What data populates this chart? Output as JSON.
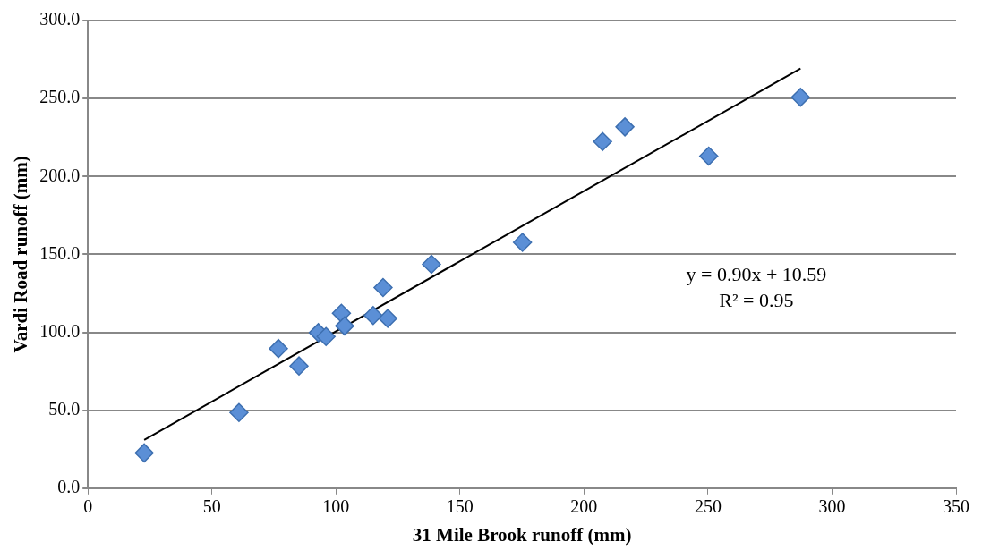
{
  "chart_data": {
    "type": "scatter",
    "xlabel": "31 Mile Brook runoff (mm)",
    "ylabel": "Vardi Road runoff (mm)",
    "xlim": [
      0,
      350
    ],
    "xticks": [
      0,
      50,
      100,
      150,
      200,
      250,
      300,
      350
    ],
    "ylim": [
      0,
      300
    ],
    "yticks": [
      {
        "value": 0,
        "label": "0.0"
      },
      {
        "value": 50,
        "label": "50.0"
      },
      {
        "value": 100,
        "label": "100.0"
      },
      {
        "value": 150,
        "label": "150.0"
      },
      {
        "value": 200,
        "label": "200.0"
      },
      {
        "value": 250,
        "label": "250.0"
      },
      {
        "value": 300,
        "label": "300.0"
      }
    ],
    "grid": "y",
    "series": [
      {
        "type": "scatter",
        "marker": "diamond",
        "color": "#5b8fd6",
        "x": [
          22.7,
          60.9,
          76.8,
          85.1,
          92.9,
          96.0,
          102.2,
          103.5,
          115.0,
          120.9,
          119.0,
          138.5,
          175.2,
          207.5,
          216.5,
          250.3,
          287.3
        ],
        "values": [
          22.6,
          48.5,
          89.6,
          78.4,
          99.8,
          97.3,
          112.2,
          104.1,
          110.8,
          108.9,
          128.7,
          143.6,
          157.7,
          222.4,
          231.8,
          213.1,
          250.8
        ]
      },
      {
        "type": "line",
        "marker": "none",
        "color": "#000000",
        "x": [
          22.7,
          287.3
        ],
        "values": [
          31.0,
          269.2
        ]
      }
    ],
    "annotations": [
      "y = 0.90x + 10.59",
      "R² = 0.95"
    ]
  }
}
